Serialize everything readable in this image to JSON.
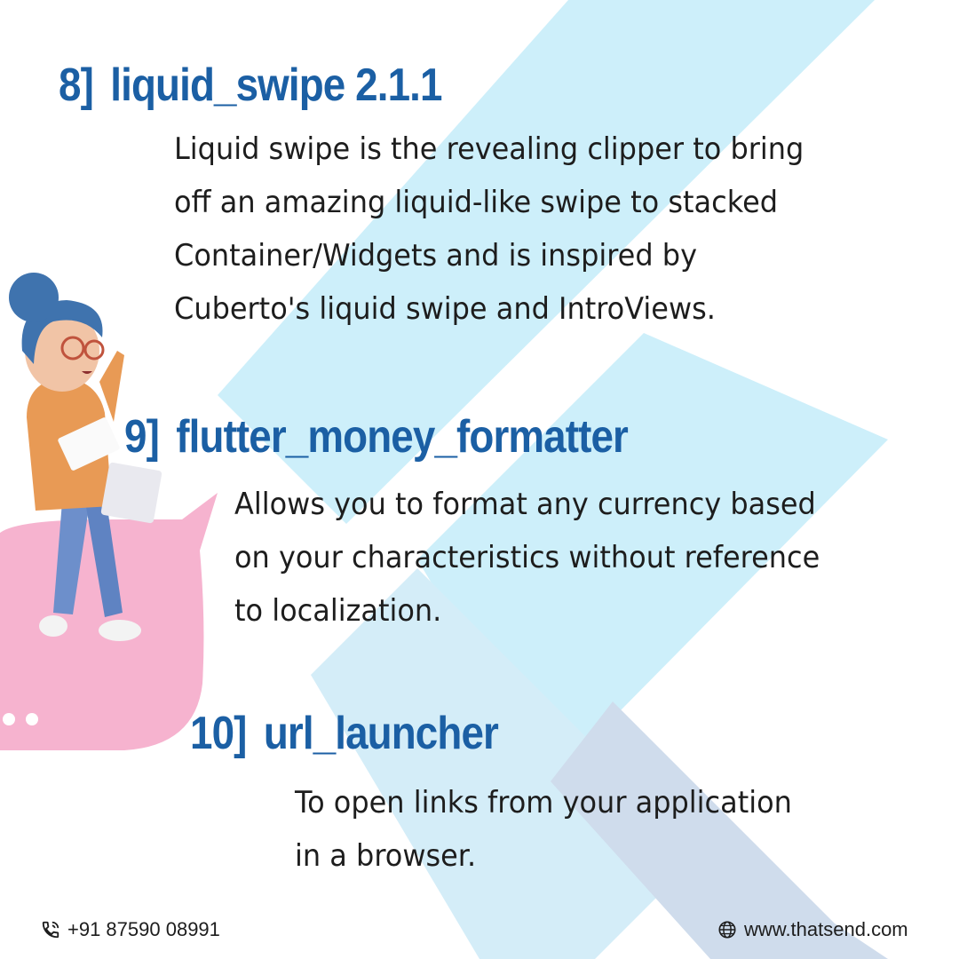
{
  "items": [
    {
      "number": "8]",
      "name": "liquid_swipe 2.1.1",
      "lines": [
        "Liquid swipe is the revealing clipper to bring",
        "off an amazing liquid-like swipe to stacked",
        "Container/Widgets and is inspired by",
        "Cuberto's liquid swipe and IntroViews."
      ]
    },
    {
      "number": "9]",
      "name": "flutter_money_formatter",
      "lines": [
        "Allows you to format any currency based",
        "on your characteristics without reference",
        "to localization."
      ]
    },
    {
      "number": "10]",
      "name": "url_launcher",
      "lines": [
        "To open links from your application",
        "in a browser."
      ]
    }
  ],
  "footer": {
    "phone": "+91 87590 08991",
    "phone_icon": "phone-icon",
    "website": "www.thatsend.com",
    "website_icon": "globe-icon"
  },
  "colors": {
    "heading": "#1b5fa4",
    "background_shape_light": "#cdeffa",
    "background_shape_dark": "#cfdcec",
    "speech_bubble": "#f6b3cf"
  }
}
